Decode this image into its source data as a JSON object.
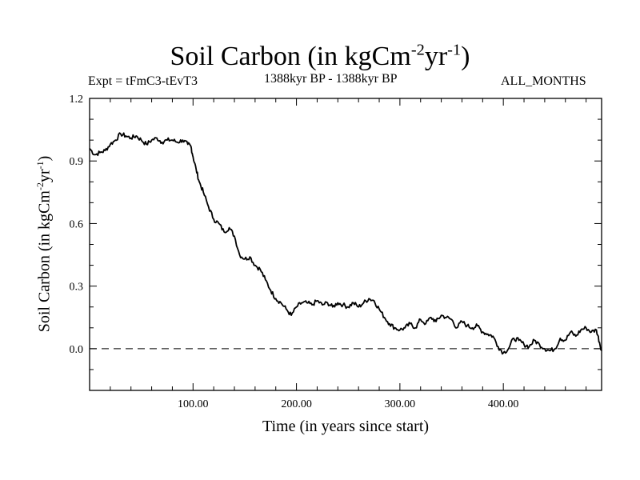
{
  "chart_data": {
    "type": "line",
    "title": {
      "main": "Soil Carbon (in kgCm",
      "sup1": "-2",
      "mid": "yr",
      "sup2": "-1",
      "end": ")"
    },
    "subtitle_left": "Expt = tFmC3-tEvT3",
    "subtitle_center": "1388kyr BP - 1388kyr BP",
    "subtitle_right": "ALL_MONTHS",
    "xlabel": "Time (in years since start)",
    "ylabel": {
      "main": "Soil Carbon (in kgCm",
      "sup1": "-2",
      "mid": "yr",
      "sup2": "-1",
      "end": ")"
    },
    "xlim": [
      0,
      495
    ],
    "ylim": [
      -0.2,
      1.2
    ],
    "x_ticks": [
      100,
      200,
      300,
      400
    ],
    "x_tick_labels": [
      "100.00",
      "200.00",
      "300.00",
      "400.00"
    ],
    "y_ticks": [
      0.0,
      0.3,
      0.6,
      0.9,
      1.2
    ],
    "y_tick_labels": [
      "0.0",
      "0.3",
      "0.6",
      "0.9",
      "1.2"
    ],
    "reference_line": {
      "y": 0.0,
      "style": "dashed"
    },
    "series": [
      {
        "name": "Soil Carbon",
        "x": [
          0,
          5,
          10,
          15,
          20,
          25,
          30,
          35,
          40,
          45,
          50,
          55,
          60,
          65,
          70,
          75,
          80,
          85,
          90,
          95,
          98,
          100,
          103,
          106,
          110,
          115,
          120,
          125,
          130,
          135,
          140,
          145,
          150,
          155,
          160,
          165,
          170,
          175,
          180,
          185,
          190,
          195,
          200,
          205,
          210,
          215,
          220,
          225,
          230,
          235,
          240,
          245,
          250,
          255,
          260,
          265,
          270,
          275,
          280,
          285,
          290,
          295,
          300,
          305,
          310,
          315,
          320,
          325,
          330,
          335,
          340,
          345,
          350,
          355,
          360,
          365,
          370,
          375,
          380,
          385,
          390,
          395,
          400,
          405,
          410,
          415,
          420,
          425,
          430,
          435,
          440,
          445,
          450,
          455,
          460,
          465,
          470,
          475,
          480,
          485,
          490,
          493,
          495
        ],
        "y": [
          0.96,
          0.93,
          0.94,
          0.95,
          0.98,
          1.0,
          1.03,
          1.02,
          1.01,
          1.02,
          1.0,
          0.98,
          1.0,
          1.01,
          0.99,
          1.0,
          1.0,
          0.99,
          1.0,
          0.98,
          0.97,
          0.92,
          0.86,
          0.8,
          0.75,
          0.68,
          0.62,
          0.6,
          0.56,
          0.58,
          0.54,
          0.45,
          0.43,
          0.44,
          0.4,
          0.38,
          0.33,
          0.28,
          0.24,
          0.22,
          0.19,
          0.16,
          0.2,
          0.22,
          0.22,
          0.21,
          0.23,
          0.21,
          0.22,
          0.2,
          0.22,
          0.21,
          0.2,
          0.22,
          0.2,
          0.22,
          0.24,
          0.23,
          0.19,
          0.15,
          0.12,
          0.1,
          0.09,
          0.1,
          0.12,
          0.1,
          0.14,
          0.12,
          0.15,
          0.13,
          0.16,
          0.15,
          0.14,
          0.1,
          0.13,
          0.11,
          0.1,
          0.11,
          0.08,
          0.07,
          0.06,
          0.01,
          -0.02,
          0.0,
          0.05,
          0.04,
          0.02,
          0.01,
          0.04,
          0.02,
          0.0,
          -0.01,
          0.0,
          0.05,
          0.04,
          0.08,
          0.06,
          0.09,
          0.1,
          0.08,
          0.09,
          0.03,
          -0.01
        ]
      }
    ]
  }
}
